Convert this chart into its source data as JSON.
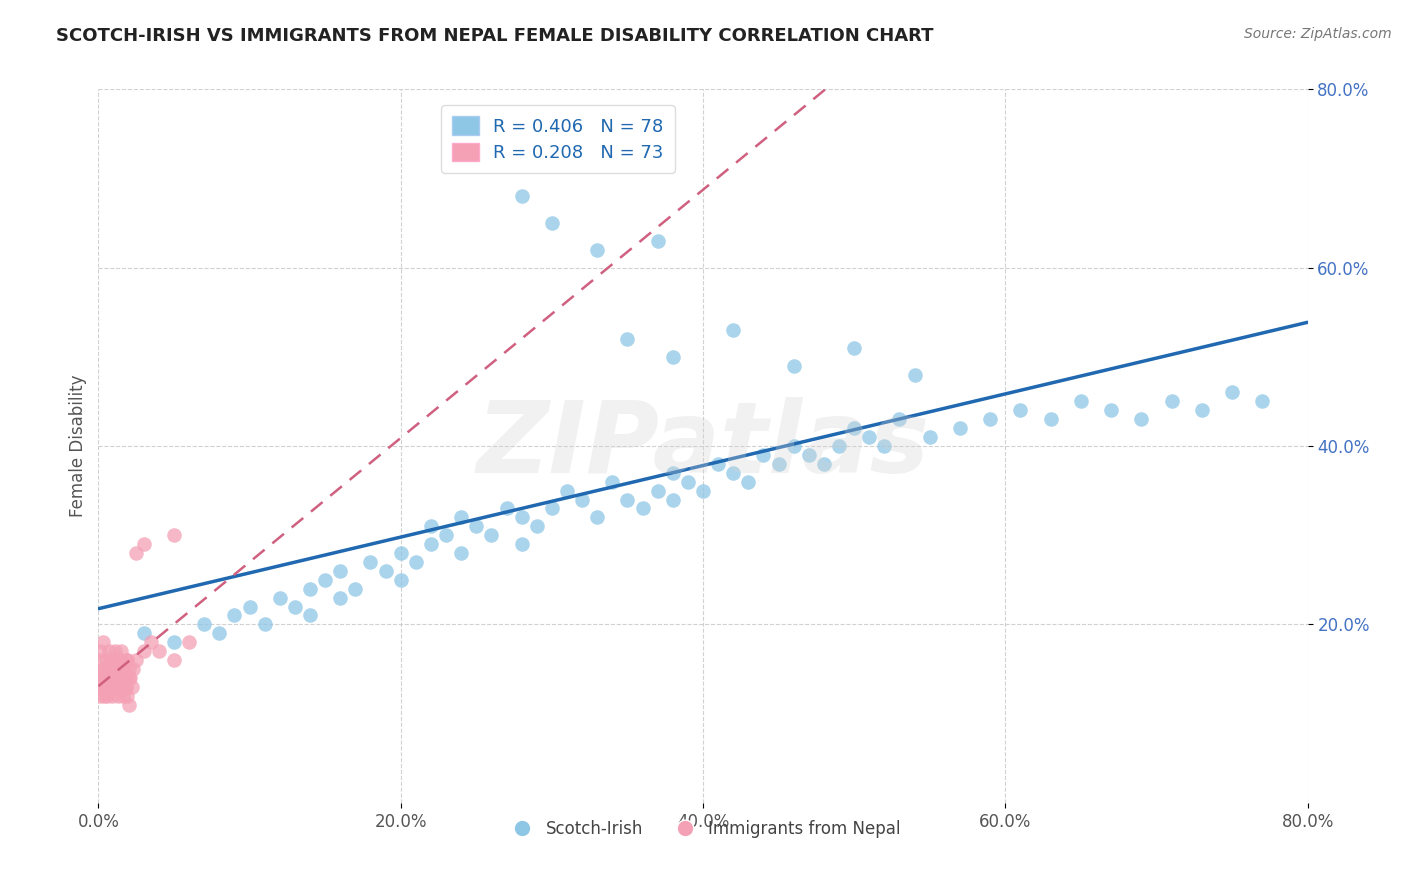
{
  "title": "SCOTCH-IRISH VS IMMIGRANTS FROM NEPAL FEMALE DISABILITY CORRELATION CHART",
  "source": "Source: ZipAtlas.com",
  "ylabel": "Female Disability",
  "xlim": [
    0.0,
    0.8
  ],
  "ylim": [
    0.0,
    0.8
  ],
  "xtick_labels": [
    "0.0%",
    "20.0%",
    "40.0%",
    "60.0%",
    "80.0%"
  ],
  "xtick_vals": [
    0.0,
    0.2,
    0.4,
    0.6,
    0.8
  ],
  "ytick_labels": [
    "20.0%",
    "40.0%",
    "60.0%",
    "80.0%"
  ],
  "ytick_vals": [
    0.2,
    0.4,
    0.6,
    0.8
  ],
  "legend1_label": "Scotch-Irish",
  "legend2_label": "Immigrants from Nepal",
  "R1": "0.406",
  "N1": "78",
  "R2": "0.208",
  "N2": "73",
  "color_blue": "#8ec6e6",
  "color_pink": "#f4a0b5",
  "line_blue": "#2068b0",
  "line_pink_dashed": "#d06080",
  "background_color": "#ffffff",
  "grid_color": "#cccccc",
  "watermark": "ZIPatlas",
  "si_x": [
    0.03,
    0.05,
    0.07,
    0.08,
    0.09,
    0.1,
    0.11,
    0.12,
    0.13,
    0.14,
    0.14,
    0.15,
    0.16,
    0.16,
    0.17,
    0.18,
    0.19,
    0.2,
    0.2,
    0.21,
    0.22,
    0.22,
    0.23,
    0.24,
    0.24,
    0.25,
    0.26,
    0.27,
    0.28,
    0.28,
    0.29,
    0.3,
    0.31,
    0.32,
    0.33,
    0.34,
    0.35,
    0.36,
    0.37,
    0.38,
    0.38,
    0.39,
    0.4,
    0.41,
    0.42,
    0.43,
    0.44,
    0.45,
    0.46,
    0.47,
    0.48,
    0.49,
    0.5,
    0.51,
    0.52,
    0.53,
    0.55,
    0.57,
    0.59,
    0.61,
    0.63,
    0.65,
    0.67,
    0.69,
    0.71,
    0.73,
    0.75,
    0.77,
    0.35,
    0.38,
    0.42,
    0.46,
    0.5,
    0.54,
    0.3,
    0.28,
    0.33,
    0.37
  ],
  "si_y": [
    0.19,
    0.18,
    0.2,
    0.19,
    0.21,
    0.22,
    0.2,
    0.23,
    0.22,
    0.24,
    0.21,
    0.25,
    0.23,
    0.26,
    0.24,
    0.27,
    0.26,
    0.25,
    0.28,
    0.27,
    0.29,
    0.31,
    0.3,
    0.28,
    0.32,
    0.31,
    0.3,
    0.33,
    0.32,
    0.29,
    0.31,
    0.33,
    0.35,
    0.34,
    0.32,
    0.36,
    0.34,
    0.33,
    0.35,
    0.37,
    0.34,
    0.36,
    0.35,
    0.38,
    0.37,
    0.36,
    0.39,
    0.38,
    0.4,
    0.39,
    0.38,
    0.4,
    0.42,
    0.41,
    0.4,
    0.43,
    0.41,
    0.42,
    0.43,
    0.44,
    0.43,
    0.45,
    0.44,
    0.43,
    0.45,
    0.44,
    0.46,
    0.45,
    0.52,
    0.5,
    0.53,
    0.49,
    0.51,
    0.48,
    0.65,
    0.68,
    0.62,
    0.63
  ],
  "nepal_x": [
    0.001,
    0.002,
    0.003,
    0.004,
    0.005,
    0.006,
    0.007,
    0.008,
    0.009,
    0.01,
    0.01,
    0.011,
    0.012,
    0.013,
    0.014,
    0.015,
    0.016,
    0.017,
    0.018,
    0.019,
    0.02,
    0.021,
    0.022,
    0.023,
    0.001,
    0.002,
    0.003,
    0.004,
    0.005,
    0.006,
    0.007,
    0.008,
    0.009,
    0.01,
    0.011,
    0.012,
    0.013,
    0.014,
    0.015,
    0.016,
    0.017,
    0.018,
    0.019,
    0.02,
    0.001,
    0.002,
    0.003,
    0.004,
    0.005,
    0.006,
    0.007,
    0.008,
    0.009,
    0.01,
    0.011,
    0.012,
    0.013,
    0.014,
    0.015,
    0.016,
    0.017,
    0.018,
    0.019,
    0.02,
    0.025,
    0.03,
    0.035,
    0.04,
    0.05,
    0.06,
    0.025,
    0.03,
    0.05
  ],
  "nepal_y": [
    0.14,
    0.13,
    0.15,
    0.14,
    0.13,
    0.15,
    0.14,
    0.16,
    0.13,
    0.15,
    0.16,
    0.14,
    0.13,
    0.15,
    0.14,
    0.16,
    0.13,
    0.15,
    0.14,
    0.16,
    0.15,
    0.14,
    0.13,
    0.15,
    0.17,
    0.16,
    0.18,
    0.15,
    0.16,
    0.14,
    0.17,
    0.15,
    0.14,
    0.16,
    0.17,
    0.15,
    0.14,
    0.16,
    0.17,
    0.15,
    0.14,
    0.13,
    0.16,
    0.14,
    0.12,
    0.13,
    0.14,
    0.12,
    0.13,
    0.12,
    0.14,
    0.13,
    0.12,
    0.15,
    0.14,
    0.13,
    0.12,
    0.14,
    0.13,
    0.12,
    0.14,
    0.13,
    0.12,
    0.11,
    0.16,
    0.17,
    0.18,
    0.17,
    0.16,
    0.18,
    0.28,
    0.29,
    0.3
  ]
}
